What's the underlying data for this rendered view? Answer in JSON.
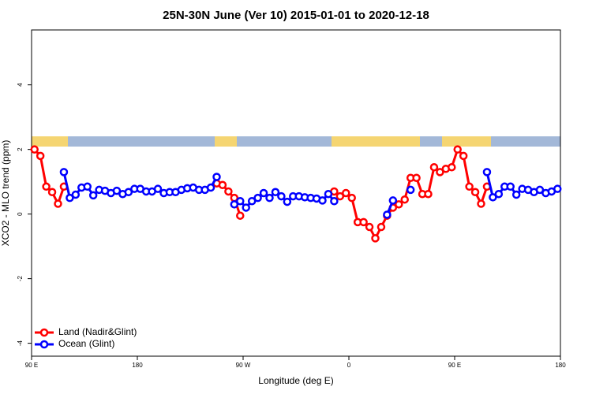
{
  "chart_data": {
    "type": "line",
    "title": "25N-30N June (Ver 10)   2015-01-01 to 2020-12-18",
    "x_label": "Longitude (deg E)",
    "y_label": "XCO2 - MLO trend (ppm)",
    "x": [
      92.5,
      97.5,
      102.5,
      107.5,
      112.5,
      117.5,
      122.5,
      127.5,
      132.5,
      137.5,
      142.5,
      147.5,
      152.5,
      157.5,
      162.5,
      167.5,
      172.5,
      177.5,
      182.5,
      187.5,
      192.5,
      197.5,
      202.5,
      207.5,
      212.5,
      217.5,
      222.5,
      227.5,
      232.5,
      237.5,
      242.5,
      247.5,
      252.5,
      257.5,
      262.5,
      267.5,
      272.5,
      277.5,
      282.5,
      287.5,
      292.5,
      297.5,
      302.5,
      307.5,
      312.5,
      317.5,
      322.5,
      327.5,
      332.5,
      337.5,
      342.5,
      347.5,
      352.5,
      357.5,
      362.5,
      367.5,
      372.5,
      377.5,
      382.5,
      387.5,
      392.5,
      397.5,
      402.5,
      407.5,
      412.5,
      417.5,
      422.5,
      427.5,
      432.5,
      437.5,
      442.5,
      447.5,
      452.5,
      457.5,
      462.5,
      467.5,
      472.5,
      477.5,
      482.5,
      487.5,
      492.5,
      497.5,
      502.5,
      507.5,
      512.5,
      517.5,
      522.5,
      527.5,
      532.5,
      537.5
    ],
    "series": [
      {
        "name": "Land (Nadir&Glint)",
        "color": "#ff0000",
        "values": [
          2.0,
          1.8,
          0.85,
          0.68,
          0.32,
          0.85,
          null,
          null,
          null,
          null,
          null,
          null,
          null,
          null,
          null,
          null,
          null,
          null,
          null,
          null,
          null,
          null,
          null,
          null,
          null,
          null,
          null,
          null,
          null,
          null,
          null,
          0.95,
          0.9,
          0.7,
          0.5,
          -0.05,
          null,
          null,
          null,
          null,
          null,
          null,
          null,
          null,
          null,
          null,
          null,
          null,
          null,
          null,
          null,
          0.7,
          0.55,
          0.65,
          0.5,
          -0.25,
          -0.25,
          -0.4,
          -0.75,
          -0.4,
          -0.05,
          0.2,
          0.3,
          0.45,
          1.12,
          1.12,
          0.62,
          0.62,
          1.45,
          1.3,
          1.4,
          1.45,
          2.0,
          1.8,
          0.85,
          0.68,
          0.32,
          0.85,
          null,
          null,
          null,
          null,
          null,
          null,
          null,
          null,
          null,
          null,
          null,
          null
        ]
      },
      {
        "name": "Ocean (Glint)",
        "color": "#0000ff",
        "values": [
          null,
          null,
          null,
          null,
          null,
          1.3,
          0.5,
          0.6,
          0.82,
          0.85,
          0.58,
          0.75,
          0.72,
          0.65,
          0.72,
          0.62,
          0.68,
          0.78,
          0.78,
          0.7,
          0.7,
          0.78,
          0.65,
          0.68,
          0.68,
          0.75,
          0.8,
          0.82,
          0.75,
          0.75,
          0.82,
          1.15,
          null,
          null,
          0.3,
          0.4,
          0.2,
          0.4,
          0.5,
          0.65,
          0.5,
          0.68,
          0.55,
          0.38,
          0.55,
          0.55,
          0.52,
          0.5,
          0.48,
          0.42,
          0.62,
          0.4,
          null,
          null,
          null,
          null,
          null,
          null,
          null,
          null,
          -0.02,
          0.42,
          null,
          null,
          0.75,
          null,
          null,
          null,
          null,
          null,
          null,
          null,
          null,
          null,
          null,
          null,
          null,
          1.3,
          0.52,
          0.62,
          0.85,
          0.85,
          0.6,
          0.78,
          0.75,
          0.68,
          0.75,
          0.65,
          0.7,
          0.78
        ]
      }
    ],
    "xlim": [
      90,
      540
    ],
    "xticks": [
      {
        "value": 90,
        "label": "90 E"
      },
      180,
      {
        "value": 270,
        "label": "90 W"
      },
      {
        "value": 360,
        "label": "0"
      },
      {
        "value": 450,
        "label": "90 E"
      },
      {
        "value": 540,
        "label": "180"
      }
    ],
    "ylim": [
      -4.4,
      5.7
    ],
    "yticks": [
      4,
      2,
      0,
      -2,
      -4
    ],
    "legend": "bottomleft"
  }
}
